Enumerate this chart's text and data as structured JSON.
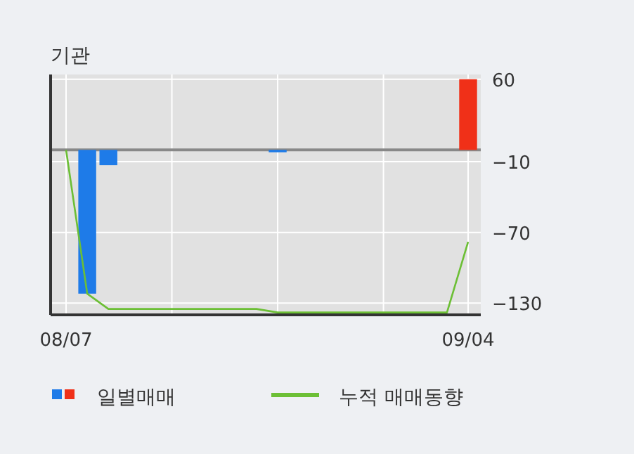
{
  "chart_data": {
    "type": "bar",
    "title": "기관",
    "categories": [
      "08/07",
      null,
      null,
      null,
      null,
      null,
      null,
      null,
      null,
      null,
      null,
      null,
      null,
      null,
      null,
      null,
      null,
      null,
      null,
      "09/04"
    ],
    "series": [
      {
        "name": "일별매매",
        "colors": [
          "#1e7be8",
          "#1e7be8",
          "#1e7be8",
          "#1e7be8",
          "#1e7be8",
          "#1e7be8",
          "#1e7be8",
          "#1e7be8",
          "#1e7be8",
          "#1e7be8",
          "#1e7be8",
          "#1e7be8",
          "#1e7be8",
          "#1e7be8",
          "#1e7be8",
          "#1e7be8",
          "#1e7be8",
          "#1e7be8",
          "#1e7be8",
          "#f03018"
        ],
        "values": [
          null,
          -122,
          -13,
          null,
          null,
          null,
          null,
          null,
          null,
          null,
          -2,
          null,
          null,
          null,
          null,
          null,
          null,
          null,
          null,
          60
        ]
      },
      {
        "name": "누적 매매동향",
        "type": "line",
        "color": "#6cbf35",
        "values": [
          0,
          -122,
          -135,
          -135,
          -135,
          -135,
          -135,
          -135,
          -135,
          -135,
          -138,
          -138,
          -138,
          -138,
          -138,
          -138,
          -138,
          -138,
          -138,
          -78
        ]
      }
    ],
    "ylim": [
      -140,
      64
    ],
    "yticks": [
      60,
      -10,
      -70,
      -130
    ],
    "ref_lines": [
      {
        "axis": "y",
        "value": 0,
        "color": "#888888"
      }
    ],
    "grid": true,
    "legend": "bottom"
  }
}
